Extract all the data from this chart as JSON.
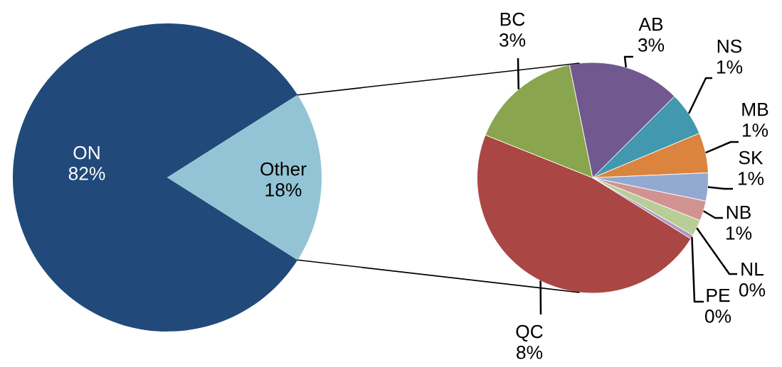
{
  "chart_data": [
    {
      "type": "pie",
      "categories": [
        "ON",
        "Other"
      ],
      "values": [
        82,
        18
      ],
      "colors": [
        "#214a7b",
        "#93c4d5"
      ],
      "value_labels": [
        "82%",
        "18%"
      ]
    },
    {
      "type": "pie",
      "categories": [
        "QC",
        "BC",
        "AB",
        "NS",
        "MB",
        "SK",
        "NB",
        "NL",
        "PE"
      ],
      "values": [
        8.4,
        2.8,
        2.8,
        1.1,
        1.0,
        0.7,
        0.5,
        0.4,
        0.1
      ],
      "colors": [
        "#aa4644",
        "#89a54e",
        "#71588f",
        "#4198af",
        "#db843d",
        "#93a9cf",
        "#d19392",
        "#b9cd96",
        "#a99bbd"
      ],
      "value_labels": [
        "8%",
        "3%",
        "3%",
        "1%",
        "1%",
        "1%",
        "1%",
        "0%",
        "0%"
      ]
    }
  ]
}
